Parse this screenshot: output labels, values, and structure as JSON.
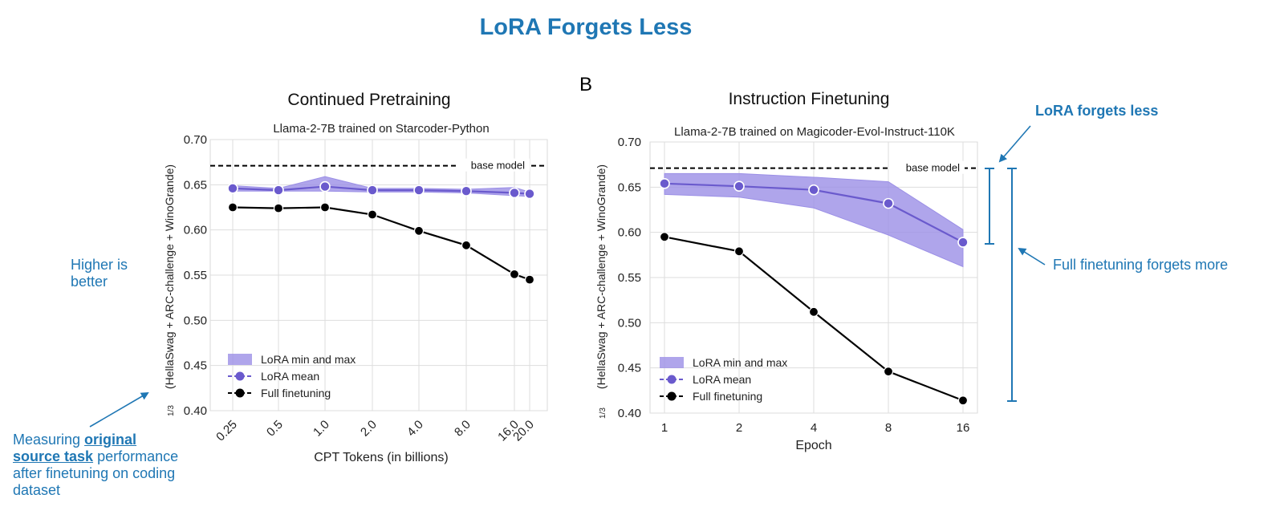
{
  "figure": {
    "main_title": "LoRA Forgets Less",
    "panel_label": "B",
    "annotations": {
      "higher_line1": "Higher is",
      "higher_line2": "better",
      "measuring_pre": "Measuring ",
      "measuring_bold1": "original",
      "measuring_bold2": "source task",
      "measuring_post1": " performance",
      "measuring_post2": "after finetuning on coding",
      "measuring_post3": "dataset",
      "lora_forgets_less": "LoRA forgets less",
      "full_forgets_more": "Full finetuning forgets more"
    },
    "colors": {
      "accent": "#1f77b4",
      "lora": "#6a5acd",
      "lora_band": "#9b8fe6",
      "full": "#000000",
      "base": "#000000"
    }
  },
  "chart_data": [
    {
      "type": "line",
      "heading": "Continued Pretraining",
      "title": "Llama-2-7B trained on Starcoder-Python",
      "xlabel": "CPT Tokens (in billions)",
      "ylabel": "(HellaSwag + ARC-challenge + WinoGrande)",
      "ylabel_prefix": "1/3",
      "categories": [
        "0.25",
        "0.5",
        "1.0",
        "2.0",
        "4.0",
        "8.0",
        "16.0",
        "20.0"
      ],
      "x": [
        0.25,
        0.5,
        1.0,
        2.0,
        4.0,
        8.0,
        16.0,
        20.0
      ],
      "ylim": [
        0.4,
        0.7
      ],
      "yticks": [
        "0.70",
        "0.65",
        "0.60",
        "0.55",
        "0.50",
        "0.45",
        "0.40"
      ],
      "base_model": {
        "label": "base model",
        "value": 0.671
      },
      "series": [
        {
          "name": "LoRA min and max",
          "kind": "band",
          "min": [
            0.643,
            0.643,
            0.643,
            0.642,
            0.642,
            0.641,
            0.638,
            0.637
          ],
          "max": [
            0.649,
            0.646,
            0.659,
            0.646,
            0.646,
            0.645,
            0.647,
            0.642
          ]
        },
        {
          "name": "LoRA mean",
          "kind": "line",
          "values": [
            0.646,
            0.644,
            0.648,
            0.644,
            0.644,
            0.643,
            0.641,
            0.64
          ]
        },
        {
          "name": "Full finetuning",
          "kind": "line",
          "values": [
            0.625,
            0.624,
            0.625,
            0.617,
            0.599,
            0.583,
            0.551,
            0.545
          ]
        }
      ],
      "grid": true,
      "legend": "lower-left"
    },
    {
      "type": "line",
      "heading": "Instruction Finetuning",
      "title": "Llama-2-7B trained on Magicoder-Evol-Instruct-110K",
      "xlabel": "Epoch",
      "ylabel": "(HellaSwag + ARC-challenge + WinoGrande)",
      "ylabel_prefix": "1/3",
      "categories": [
        "1",
        "2",
        "4",
        "8",
        "16"
      ],
      "x": [
        1,
        2,
        4,
        8,
        16
      ],
      "ylim": [
        0.4,
        0.7
      ],
      "yticks": [
        "0.70",
        "0.65",
        "0.60",
        "0.55",
        "0.50",
        "0.45",
        "0.40"
      ],
      "base_model": {
        "label": "base model",
        "value": 0.671
      },
      "series": [
        {
          "name": "LoRA min and max",
          "kind": "band",
          "min": [
            0.642,
            0.639,
            0.627,
            0.597,
            0.562
          ],
          "max": [
            0.665,
            0.665,
            0.661,
            0.656,
            0.603
          ]
        },
        {
          "name": "LoRA mean",
          "kind": "line",
          "values": [
            0.654,
            0.651,
            0.647,
            0.632,
            0.589
          ]
        },
        {
          "name": "Full finetuning",
          "kind": "line",
          "values": [
            0.595,
            0.579,
            0.512,
            0.446,
            0.414
          ]
        }
      ],
      "grid": true,
      "legend": "lower-left"
    }
  ]
}
